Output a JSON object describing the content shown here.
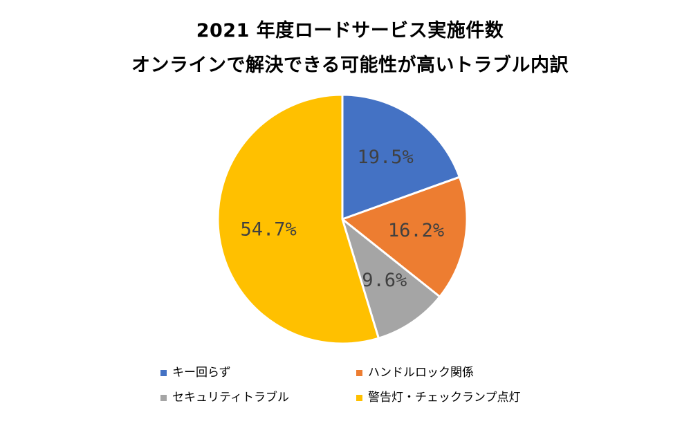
{
  "chart_data": {
    "type": "pie",
    "title": "2021 年度ロードサービス実施件数",
    "subtitle": "オンラインで解決できる可能性が高いトラブル内訳",
    "categories": [
      "キー回らず",
      "ハンドルロック関係",
      "セキュリティトラブル",
      "警告灯・チェックランプ点灯"
    ],
    "values": [
      19.5,
      16.2,
      9.6,
      54.7
    ],
    "data_labels": [
      "19.5%",
      "16.2%",
      "9.6%",
      "54.7%"
    ],
    "colors": [
      "#4472C4",
      "#ED7D31",
      "#A5A5A5",
      "#FFC000"
    ],
    "legend_position": "bottom"
  }
}
